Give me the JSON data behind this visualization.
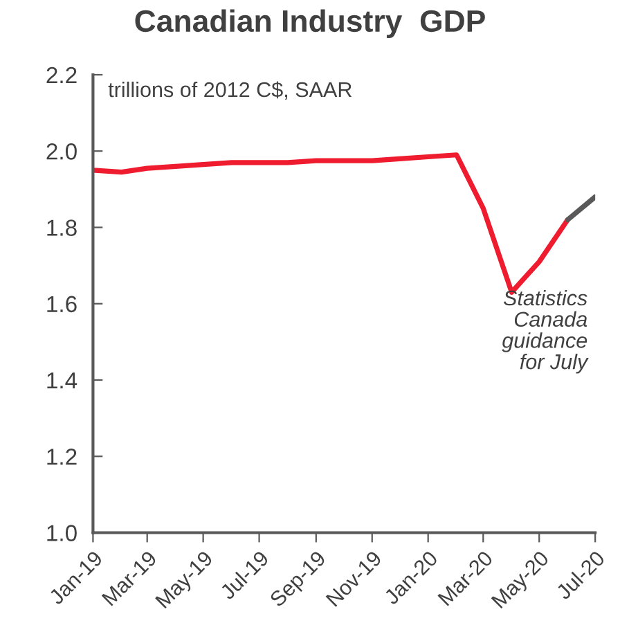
{
  "chart_data": {
    "type": "line",
    "title": "Canadian Industry  GDP",
    "ylabel": "trillions of 2012 C$, SAAR",
    "series": [
      {
        "color": "#ee1c2e",
        "x": [
          "2019-01",
          "2019-02",
          "2019-03",
          "2019-04",
          "2019-05",
          "2019-06",
          "2019-07",
          "2019-08",
          "2019-09",
          "2019-10",
          "2019-11",
          "2019-12",
          "2020-01",
          "2020-02",
          "2020-03",
          "2020-04",
          "2020-05",
          "2020-06"
        ],
        "values": [
          1.95,
          1.945,
          1.955,
          1.96,
          1.965,
          1.97,
          1.97,
          1.97,
          1.975,
          1.975,
          1.975,
          1.98,
          1.985,
          1.99,
          1.85,
          1.63,
          1.71,
          1.82
        ]
      },
      {
        "color": "#595959",
        "x": [
          "2020-06",
          "2020-07"
        ],
        "values": [
          1.82,
          1.88
        ]
      }
    ],
    "xlim": [
      "2019-01",
      "2020-07"
    ],
    "xticks": [
      {
        "value": "2019-01",
        "label": "Jan-19"
      },
      {
        "value": "2019-03",
        "label": "Mar-19"
      },
      {
        "value": "2019-05",
        "label": "May-19"
      },
      {
        "value": "2019-07",
        "label": "Jul-19"
      },
      {
        "value": "2019-09",
        "label": "Sep-19"
      },
      {
        "value": "2019-11",
        "label": "Nov-19"
      },
      {
        "value": "2020-01",
        "label": "Jan-20"
      },
      {
        "value": "2020-03",
        "label": "Mar-20"
      },
      {
        "value": "2020-05",
        "label": "May-20"
      },
      {
        "value": "2020-07",
        "label": "Jul-20"
      }
    ],
    "ylim": [
      1.0,
      2.2
    ],
    "yticks": [
      {
        "value": 1.0,
        "label": "1.0"
      },
      {
        "value": 1.2,
        "label": "1.2"
      },
      {
        "value": 1.4,
        "label": "1.4"
      },
      {
        "value": 1.6,
        "label": "1.6"
      },
      {
        "value": 1.8,
        "label": "1.8"
      },
      {
        "value": 2.0,
        "label": "2.0"
      },
      {
        "value": 2.2,
        "label": "2.2"
      }
    ],
    "annotations": [
      "Statistics\nCanada\nguidance\nfor July"
    ],
    "grid": false,
    "legend": false,
    "marker": "none",
    "line_style": "solid"
  }
}
